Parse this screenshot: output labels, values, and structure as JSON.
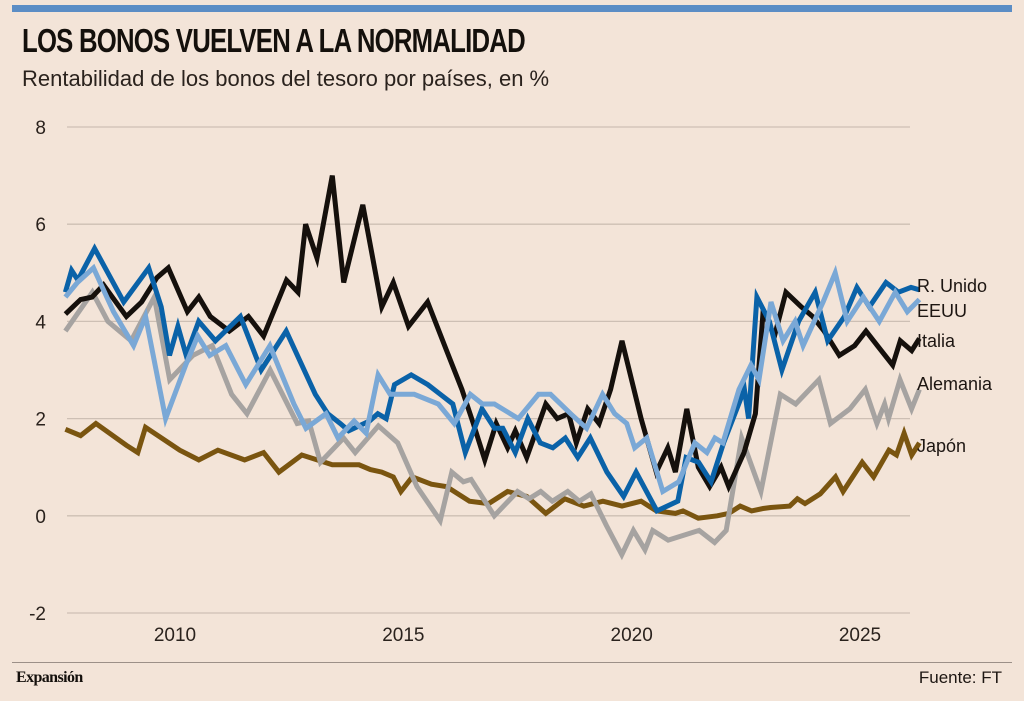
{
  "header": {
    "title": "LOS BONOS VUELVEN A LA NORMALIDAD",
    "subtitle": "Rentabilidad de los bonos del tesoro por países, en %"
  },
  "footer": {
    "brand": "Expansión",
    "source": "Fuente: FT"
  },
  "colors": {
    "accent_rule": "#5b8dc5",
    "background": "#f3e4d8",
    "gridline": "#cdbfb4"
  },
  "chart_data": {
    "type": "line",
    "title": "LOS BONOS VUELVEN A LA NORMALIDAD",
    "subtitle": "Rentabilidad de los bonos del tesoro por países, en %",
    "xlabel": "",
    "ylabel": "%",
    "xlim": [
      2007.6,
      2026.3
    ],
    "ylim": [
      -2,
      8
    ],
    "yticks": [
      -2,
      0,
      2,
      4,
      6,
      8
    ],
    "ytick_labels": [
      "-2",
      "0",
      "2",
      "4",
      "6",
      "8"
    ],
    "xticks": [
      2010,
      2015,
      2020,
      2025
    ],
    "xtick_labels": [
      "2010",
      "2015",
      "2020",
      "2025"
    ],
    "grid": true,
    "legend": "right (labels at line ends)",
    "series": [
      {
        "name": "R. Unido",
        "color": "#0a62a8",
        "points": [
          [
            2007.6,
            4.6
          ],
          [
            2007.75,
            5.05
          ],
          [
            2007.9,
            4.85
          ],
          [
            2008.3,
            5.5
          ],
          [
            2009.0,
            4.4
          ],
          [
            2009.6,
            5.1
          ],
          [
            2009.9,
            4.3
          ],
          [
            2010.1,
            3.3
          ],
          [
            2010.3,
            3.9
          ],
          [
            2010.5,
            3.3
          ],
          [
            2010.8,
            4.0
          ],
          [
            2011.2,
            3.6
          ],
          [
            2011.8,
            4.1
          ],
          [
            2012.3,
            3.0
          ],
          [
            2012.9,
            3.8
          ],
          [
            2013.6,
            2.5
          ],
          [
            2013.9,
            2.1
          ],
          [
            2014.2,
            1.9
          ],
          [
            2014.4,
            1.75
          ],
          [
            2014.9,
            1.95
          ],
          [
            2015.1,
            2.1
          ],
          [
            2015.3,
            2.0
          ],
          [
            2015.5,
            2.7
          ],
          [
            2015.9,
            2.9
          ],
          [
            2016.3,
            2.7
          ],
          [
            2016.6,
            2.5
          ],
          [
            2016.9,
            2.3
          ],
          [
            2017.2,
            1.3
          ],
          [
            2017.6,
            2.2
          ],
          [
            2017.9,
            1.8
          ],
          [
            2018.1,
            1.8
          ],
          [
            2018.4,
            1.3
          ],
          [
            2018.7,
            2.0
          ],
          [
            2019.0,
            1.5
          ],
          [
            2019.3,
            1.4
          ],
          [
            2019.6,
            1.6
          ],
          [
            2019.9,
            1.2
          ],
          [
            2020.2,
            1.6
          ],
          [
            2020.6,
            0.9
          ],
          [
            2021.0,
            0.4
          ],
          [
            2021.3,
            0.9
          ],
          [
            2021.8,
            0.1
          ],
          [
            2022.3,
            0.3
          ],
          [
            2022.5,
            1.2
          ],
          [
            2022.8,
            1.1
          ],
          [
            2023.1,
            0.7
          ],
          [
            2023.4,
            1.5
          ],
          [
            2023.9,
            2.6
          ],
          [
            2024.0,
            2.0
          ],
          [
            2024.2,
            4.5
          ],
          [
            2024.5,
            4.0
          ],
          [
            2024.8,
            3.0
          ],
          [
            2025.2,
            4.0
          ],
          [
            2025.6,
            4.6
          ],
          [
            2025.9,
            3.6
          ],
          [
            2026.3,
            4.1
          ],
          [
            2026.6,
            4.7
          ],
          [
            2026.9,
            4.3
          ],
          [
            2027.3,
            4.8
          ],
          [
            2027.6,
            4.6
          ],
          [
            2027.9,
            4.7
          ],
          [
            2028.1,
            4.65
          ]
        ]
      },
      {
        "name": "EEUU",
        "color": "#7aa8d6",
        "points": [
          [
            2007.6,
            4.5
          ],
          [
            2007.9,
            4.8
          ],
          [
            2008.3,
            5.1
          ],
          [
            2008.8,
            4.2
          ],
          [
            2009.3,
            3.5
          ],
          [
            2009.6,
            4.1
          ],
          [
            2010.1,
            2.0
          ],
          [
            2010.6,
            3.1
          ],
          [
            2010.9,
            3.7
          ],
          [
            2011.2,
            3.3
          ],
          [
            2011.6,
            3.5
          ],
          [
            2012.1,
            2.7
          ],
          [
            2012.7,
            3.5
          ],
          [
            2013.3,
            2.3
          ],
          [
            2013.6,
            1.8
          ],
          [
            2014.1,
            2.1
          ],
          [
            2014.4,
            1.6
          ],
          [
            2014.8,
            1.95
          ],
          [
            2015.1,
            1.7
          ],
          [
            2015.4,
            2.9
          ],
          [
            2015.7,
            2.5
          ],
          [
            2016.3,
            2.5
          ],
          [
            2016.9,
            2.3
          ],
          [
            2017.3,
            1.9
          ],
          [
            2017.7,
            2.5
          ],
          [
            2018.0,
            2.3
          ],
          [
            2018.3,
            2.3
          ],
          [
            2018.9,
            2.0
          ],
          [
            2019.4,
            2.5
          ],
          [
            2019.7,
            2.5
          ],
          [
            2020.2,
            2.1
          ],
          [
            2020.6,
            1.8
          ],
          [
            2021.0,
            2.5
          ],
          [
            2021.3,
            2.1
          ],
          [
            2021.6,
            1.9
          ],
          [
            2021.8,
            1.4
          ],
          [
            2022.1,
            1.6
          ],
          [
            2022.5,
            0.5
          ],
          [
            2022.9,
            0.7
          ],
          [
            2023.3,
            1.5
          ],
          [
            2023.6,
            1.3
          ],
          [
            2023.8,
            1.6
          ],
          [
            2024.0,
            1.5
          ],
          [
            2024.4,
            2.6
          ],
          [
            2024.7,
            3.1
          ],
          [
            2024.9,
            2.8
          ],
          [
            2025.2,
            4.4
          ],
          [
            2025.5,
            3.6
          ],
          [
            2025.8,
            4.0
          ],
          [
            2026.0,
            3.5
          ],
          [
            2026.5,
            4.4
          ],
          [
            2026.8,
            5.0
          ],
          [
            2027.1,
            4.0
          ],
          [
            2027.5,
            4.5
          ],
          [
            2027.9,
            4.0
          ],
          [
            2028.3,
            4.6
          ],
          [
            2028.6,
            4.2
          ],
          [
            2028.9,
            4.45
          ]
        ]
      },
      {
        "name": "Italia",
        "color": "#15100c",
        "points": [
          [
            2007.6,
            4.15
          ],
          [
            2008.0,
            4.45
          ],
          [
            2008.3,
            4.5
          ],
          [
            2008.6,
            4.75
          ],
          [
            2009.2,
            4.1
          ],
          [
            2009.6,
            4.4
          ],
          [
            2010.0,
            4.9
          ],
          [
            2010.3,
            5.1
          ],
          [
            2010.8,
            4.2
          ],
          [
            2011.1,
            4.5
          ],
          [
            2011.4,
            4.1
          ],
          [
            2011.9,
            3.8
          ],
          [
            2012.4,
            4.1
          ],
          [
            2012.8,
            3.7
          ],
          [
            2013.4,
            4.85
          ],
          [
            2013.7,
            4.6
          ],
          [
            2013.9,
            6.0
          ],
          [
            2014.2,
            5.3
          ],
          [
            2014.6,
            7.0
          ],
          [
            2014.9,
            4.8
          ],
          [
            2015.4,
            6.4
          ],
          [
            2015.9,
            4.3
          ],
          [
            2016.2,
            4.8
          ],
          [
            2016.6,
            3.9
          ],
          [
            2017.1,
            4.4
          ],
          [
            2017.6,
            3.4
          ],
          [
            2018.0,
            2.6
          ],
          [
            2018.3,
            1.9
          ],
          [
            2018.6,
            1.15
          ],
          [
            2018.9,
            1.9
          ],
          [
            2019.2,
            1.4
          ],
          [
            2019.4,
            1.75
          ],
          [
            2019.7,
            1.2
          ],
          [
            2020.2,
            2.3
          ],
          [
            2020.5,
            2.0
          ],
          [
            2020.8,
            2.1
          ],
          [
            2021.0,
            1.5
          ],
          [
            2021.3,
            2.2
          ],
          [
            2021.6,
            1.9
          ],
          [
            2021.9,
            2.6
          ],
          [
            2022.2,
            3.6
          ],
          [
            2022.7,
            2.0
          ],
          [
            2023.1,
            0.9
          ],
          [
            2023.4,
            1.4
          ],
          [
            2023.6,
            0.9
          ],
          [
            2023.9,
            2.2
          ],
          [
            2024.2,
            1.0
          ],
          [
            2024.5,
            0.6
          ],
          [
            2024.8,
            1.0
          ],
          [
            2025.0,
            0.6
          ],
          [
            2025.4,
            1.3
          ],
          [
            2025.7,
            2.1
          ],
          [
            2025.9,
            4.2
          ],
          [
            2026.2,
            3.7
          ],
          [
            2026.5,
            4.6
          ],
          [
            2026.9,
            4.3
          ],
          [
            2027.2,
            4.1
          ],
          [
            2027.5,
            3.8
          ],
          [
            2027.9,
            3.3
          ],
          [
            2028.3,
            3.5
          ],
          [
            2028.6,
            3.8
          ],
          [
            2028.9,
            3.5
          ],
          [
            2029.3,
            3.1
          ],
          [
            2029.5,
            3.6
          ],
          [
            2029.8,
            3.4
          ],
          [
            2030.0,
            3.65
          ]
        ]
      },
      {
        "name": "Alemania",
        "color": "#a6a3a1",
        "points": [
          [
            2007.6,
            3.8
          ],
          [
            2008.3,
            4.6
          ],
          [
            2008.7,
            4.0
          ],
          [
            2009.3,
            3.6
          ],
          [
            2009.9,
            4.5
          ],
          [
            2010.3,
            2.8
          ],
          [
            2010.9,
            3.3
          ],
          [
            2011.4,
            3.5
          ],
          [
            2011.9,
            2.5
          ],
          [
            2012.3,
            2.1
          ],
          [
            2012.9,
            3.0
          ],
          [
            2013.6,
            1.9
          ],
          [
            2013.9,
            1.95
          ],
          [
            2014.2,
            1.1
          ],
          [
            2014.8,
            1.6
          ],
          [
            2015.1,
            1.3
          ],
          [
            2015.7,
            1.85
          ],
          [
            2016.2,
            1.5
          ],
          [
            2016.7,
            0.6
          ],
          [
            2017.3,
            -0.1
          ],
          [
            2017.6,
            0.9
          ],
          [
            2017.9,
            0.7
          ],
          [
            2018.1,
            0.75
          ],
          [
            2018.7,
            0.0
          ],
          [
            2019.3,
            0.5
          ],
          [
            2019.6,
            0.35
          ],
          [
            2019.9,
            0.5
          ],
          [
            2020.2,
            0.3
          ],
          [
            2020.6,
            0.5
          ],
          [
            2020.9,
            0.3
          ],
          [
            2021.2,
            0.45
          ],
          [
            2021.6,
            -0.2
          ],
          [
            2022.0,
            -0.8
          ],
          [
            2022.3,
            -0.3
          ],
          [
            2022.6,
            -0.7
          ],
          [
            2022.8,
            -0.3
          ],
          [
            2023.2,
            -0.5
          ],
          [
            2023.6,
            -0.4
          ],
          [
            2024.0,
            -0.3
          ],
          [
            2024.4,
            -0.55
          ],
          [
            2024.7,
            -0.3
          ],
          [
            2025.1,
            1.6
          ],
          [
            2025.6,
            0.5
          ],
          [
            2026.1,
            2.5
          ],
          [
            2026.5,
            2.3
          ],
          [
            2027.1,
            2.8
          ],
          [
            2027.4,
            1.9
          ],
          [
            2027.9,
            2.2
          ],
          [
            2028.3,
            2.6
          ],
          [
            2028.6,
            1.9
          ],
          [
            2028.8,
            2.3
          ],
          [
            2028.9,
            2.0
          ],
          [
            2029.2,
            2.8
          ],
          [
            2029.5,
            2.2
          ],
          [
            2029.7,
            2.6
          ]
        ]
      },
      {
        "name": "Japón",
        "color": "#7a5510",
        "points": [
          [
            2007.6,
            1.78
          ],
          [
            2008.0,
            1.65
          ],
          [
            2008.4,
            1.9
          ],
          [
            2009.2,
            1.45
          ],
          [
            2009.5,
            1.3
          ],
          [
            2009.7,
            1.82
          ],
          [
            2010.6,
            1.35
          ],
          [
            2011.1,
            1.15
          ],
          [
            2011.6,
            1.35
          ],
          [
            2012.3,
            1.15
          ],
          [
            2012.8,
            1.3
          ],
          [
            2013.2,
            0.9
          ],
          [
            2013.8,
            1.25
          ],
          [
            2014.4,
            1.1
          ],
          [
            2014.6,
            1.05
          ],
          [
            2015.3,
            1.05
          ],
          [
            2015.6,
            0.95
          ],
          [
            2015.9,
            0.9
          ],
          [
            2016.2,
            0.8
          ],
          [
            2016.4,
            0.5
          ],
          [
            2016.7,
            0.8
          ],
          [
            2017.2,
            0.65
          ],
          [
            2017.6,
            0.6
          ],
          [
            2018.2,
            0.3
          ],
          [
            2018.7,
            0.25
          ],
          [
            2019.2,
            0.5
          ],
          [
            2019.7,
            0.4
          ],
          [
            2020.2,
            0.05
          ],
          [
            2020.7,
            0.35
          ],
          [
            2021.2,
            0.2
          ],
          [
            2021.7,
            0.3
          ],
          [
            2022.2,
            0.2
          ],
          [
            2022.7,
            0.3
          ],
          [
            2023.1,
            0.1
          ],
          [
            2023.6,
            0.05
          ],
          [
            2023.8,
            0.1
          ],
          [
            2024.2,
            -0.05
          ],
          [
            2024.7,
            0.0
          ],
          [
            2025.0,
            0.05
          ],
          [
            2025.3,
            0.2
          ],
          [
            2025.6,
            0.1
          ],
          [
            2025.9,
            0.15
          ],
          [
            2026.1,
            0.17
          ],
          [
            2026.6,
            0.2
          ],
          [
            2026.8,
            0.35
          ],
          [
            2027.0,
            0.25
          ],
          [
            2027.4,
            0.45
          ],
          [
            2027.8,
            0.8
          ],
          [
            2028.0,
            0.5
          ],
          [
            2028.5,
            1.1
          ],
          [
            2028.8,
            0.8
          ],
          [
            2029.2,
            1.35
          ],
          [
            2029.4,
            1.25
          ],
          [
            2029.6,
            1.7
          ],
          [
            2029.8,
            1.25
          ],
          [
            2030.0,
            1.5
          ]
        ]
      }
    ]
  }
}
